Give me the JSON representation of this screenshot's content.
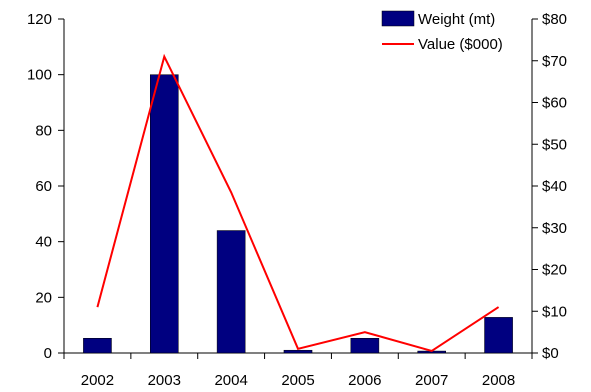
{
  "chart_data": {
    "type": "bar",
    "categories": [
      "2002",
      "2003",
      "2004",
      "2005",
      "2006",
      "2007",
      "2008"
    ],
    "series": [
      {
        "name": "Weight (mt)",
        "kind": "bar",
        "axis": "left",
        "color": "#000080",
        "values": [
          5.3,
          100,
          44,
          1,
          5.3,
          0.7,
          12.8
        ]
      },
      {
        "name": "Value ($000)",
        "kind": "line",
        "axis": "right",
        "color": "#ff0000",
        "values": [
          11,
          71,
          38.5,
          1,
          5,
          0.5,
          11
        ]
      }
    ],
    "left_axis": {
      "ylim": [
        0,
        120
      ],
      "ticks": [
        "0",
        "20",
        "40",
        "60",
        "80",
        "100",
        "120"
      ]
    },
    "right_axis": {
      "ylim": [
        0,
        80
      ],
      "ticks": [
        "$0",
        "$10",
        "$20",
        "$30",
        "$40",
        "$50",
        "$60",
        "$70",
        "$80"
      ]
    },
    "grid": false,
    "legend": {
      "placement": "top-right"
    }
  }
}
